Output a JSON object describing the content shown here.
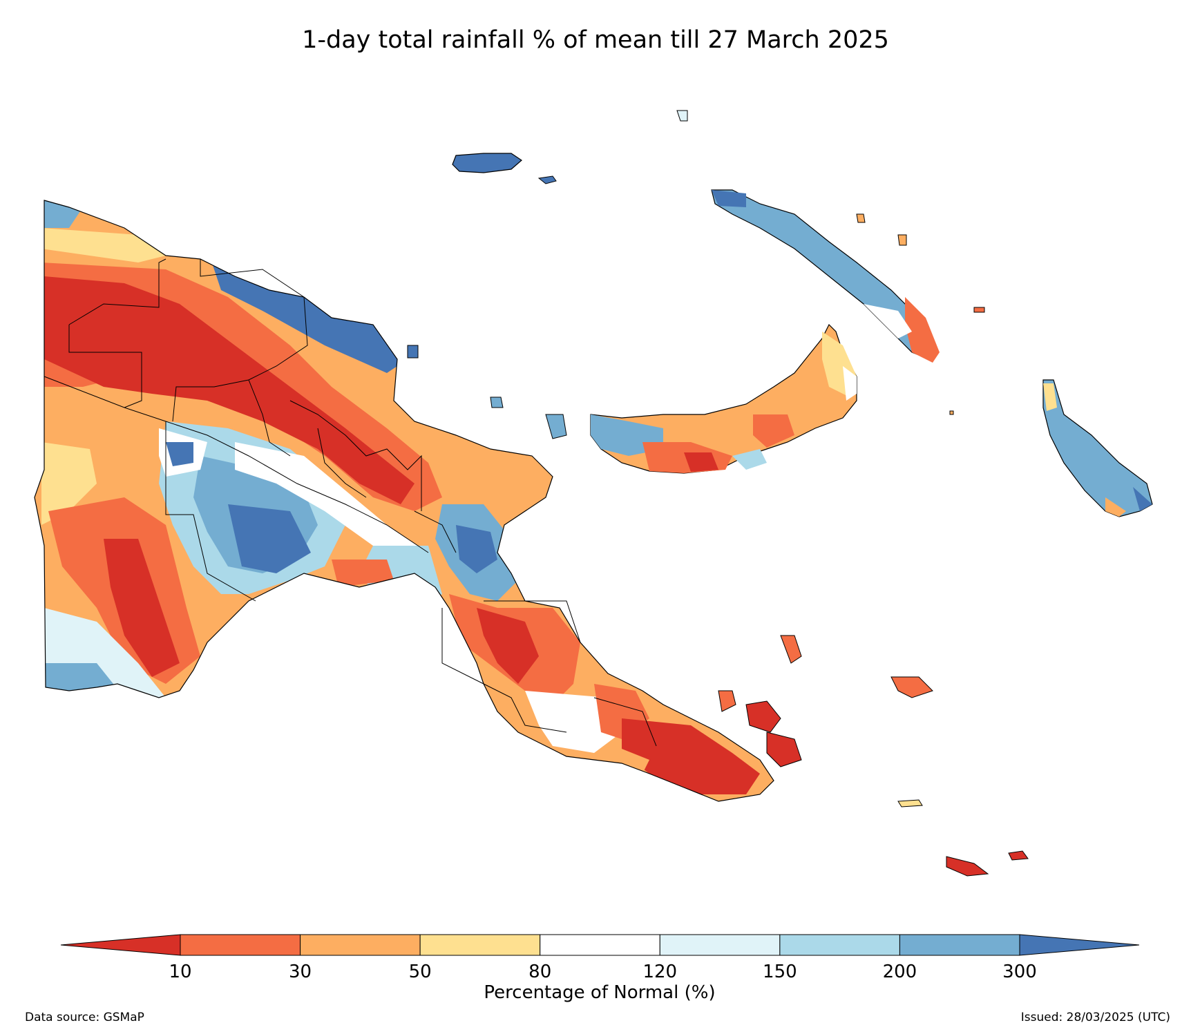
{
  "title": "1-day total rainfall % of mean till 27 March 2025",
  "colorbar": {
    "label": "Percentage of Normal (%)",
    "ticks": [
      "10",
      "30",
      "50",
      "80",
      "120",
      "150",
      "200",
      "300"
    ],
    "colors": {
      "under": "#d73027",
      "bins": [
        "#f46d43",
        "#fdae61",
        "#fee090",
        "#ffffff",
        "#e0f3f8",
        "#abd9e9",
        "#74add1"
      ],
      "over": "#4575b4"
    }
  },
  "footer": {
    "source": "Data source: GSMaP",
    "issued": "Issued: 28/03/2025 (UTC)"
  }
}
